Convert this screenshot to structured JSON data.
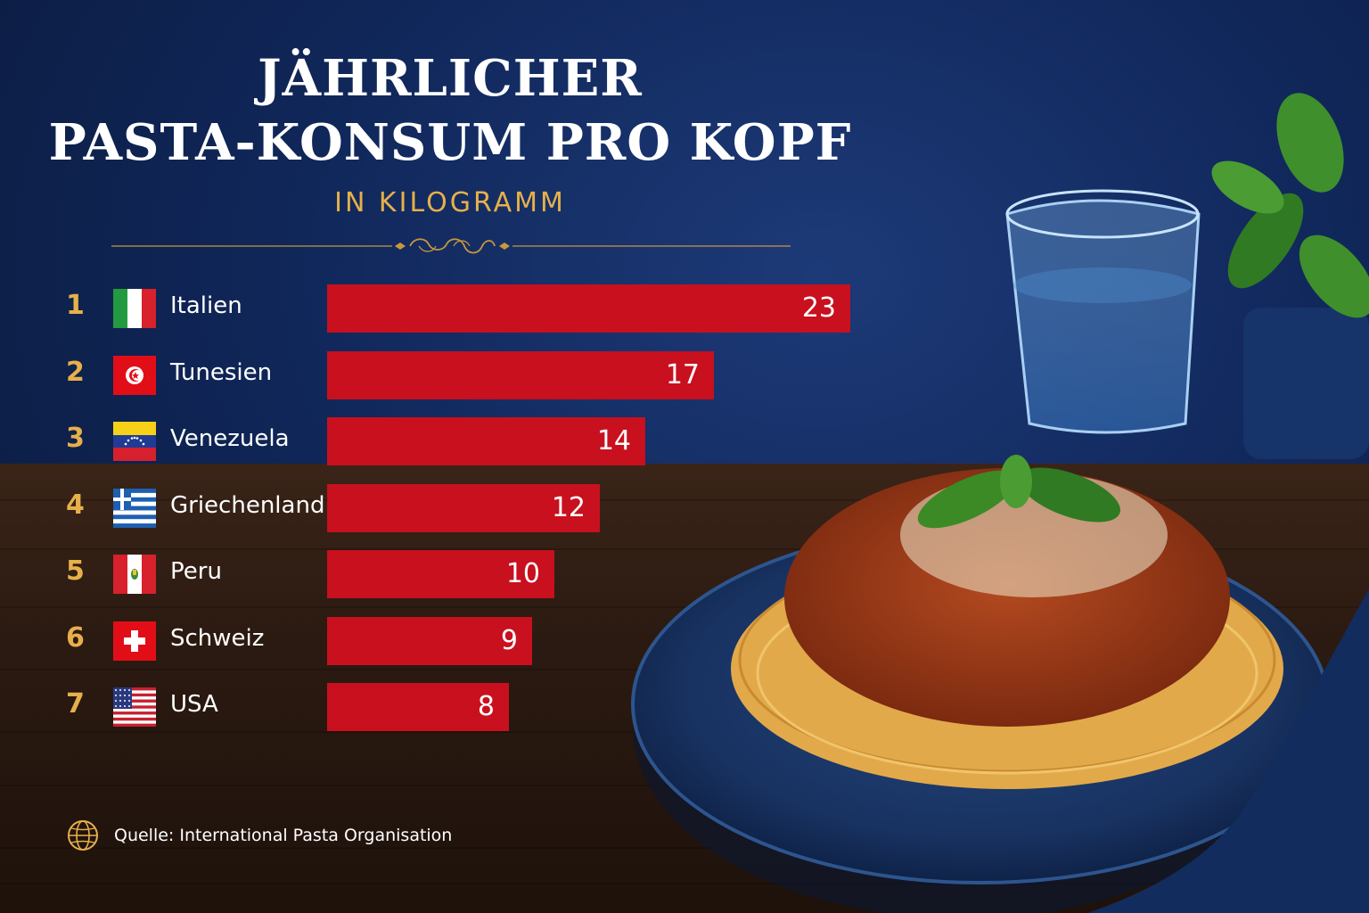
{
  "chart_data": {
    "type": "bar",
    "orientation": "horizontal",
    "title_lines": [
      "JÄHRLICHER",
      "PASTA-KONSUM PRO KOPF"
    ],
    "subtitle": "IN KILOGRAMM",
    "categories": [
      "Italien",
      "Tunesien",
      "Venezuela",
      "Griechenland",
      "Peru",
      "Schweiz",
      "USA"
    ],
    "ranks": [
      "1",
      "2",
      "3",
      "4",
      "5",
      "6",
      "7"
    ],
    "values": [
      23,
      17,
      14,
      12,
      10,
      9,
      8
    ],
    "flag_icons": [
      "italy-flag-icon",
      "tunisia-flag-icon",
      "venezuela-flag-icon",
      "greece-flag-icon",
      "peru-flag-icon",
      "switzerland-flag-icon",
      "usa-flag-icon"
    ],
    "xlim": [
      0,
      23
    ],
    "grid": false,
    "legend": "none"
  },
  "source": "Quelle: International Pasta Organisation",
  "colors": {
    "background": "#10275a",
    "bar": "#c8101e",
    "accent_gold": "#e6b04a",
    "text": "#ffffff"
  },
  "icons": {
    "source": "globe-icon",
    "divider": "ornament-icon"
  }
}
